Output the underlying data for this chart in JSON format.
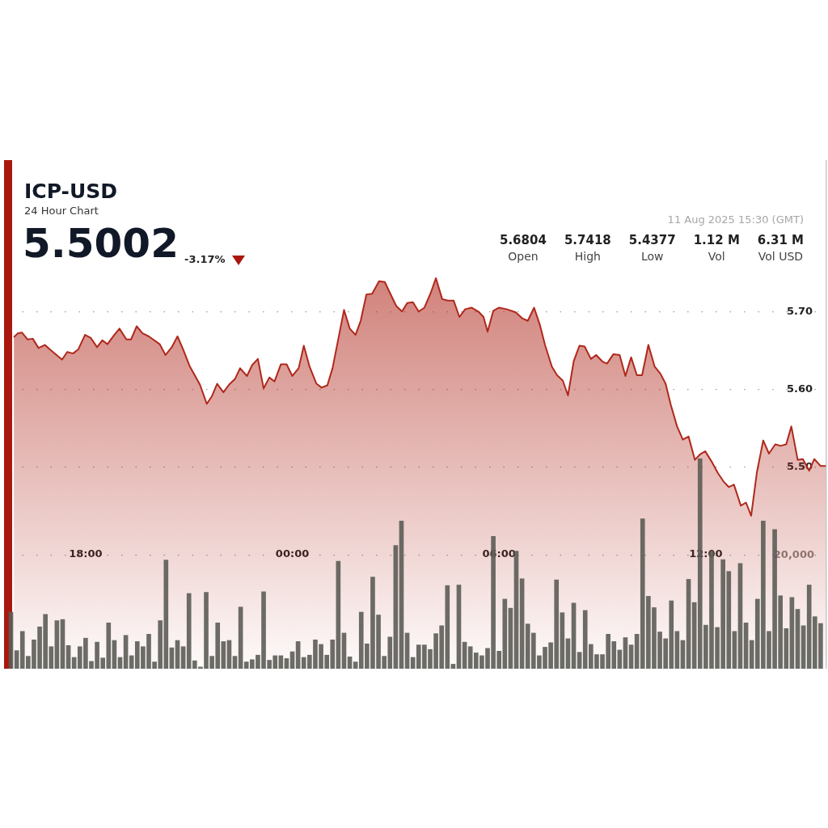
{
  "chart_data": {
    "type": "area",
    "title": "ICP-USD",
    "subtitle": "24 Hour Chart",
    "annotations": [
      "5.5002",
      "-3.17%",
      "11 Aug 2025 15:30 (GMT)",
      "5.6804",
      "Open",
      "5.7418",
      "High",
      "5.4377",
      "Low",
      "1.12 M",
      "Vol",
      "6.31 M",
      "Vol USD"
    ],
    "xlim": [
      "2025-08-10T15:45",
      "2025-08-11T15:30"
    ],
    "xticks": [
      {
        "value": "2025-08-10T18:00",
        "label": "18:00"
      },
      {
        "value": "2025-08-11T00:00",
        "label": "00:00"
      },
      {
        "value": "2025-08-11T06:00",
        "label": "06:00"
      },
      {
        "value": "2025-08-11T12:00",
        "label": "12:00"
      }
    ],
    "ylim": [
      5.24,
      5.895
    ],
    "yticks": [
      {
        "value": 5.5,
        "label": "5.50"
      },
      {
        "value": 5.6,
        "label": "5.60"
      },
      {
        "value": 5.7,
        "label": "5.70"
      }
    ],
    "y2lim": [
      0,
      89900
    ],
    "y2ticks": [
      {
        "value": 20000,
        "label": "20,000"
      }
    ],
    "grid": "y",
    "legend": false,
    "series": [
      {
        "color": "#b0281c",
        "x": [
          "2025-08-10T15:55",
          "2025-08-10T16:02",
          "2025-08-10T16:09",
          "2025-08-10T16:19",
          "2025-08-10T16:28",
          "2025-08-10T16:38",
          "2025-08-10T16:49",
          "2025-08-10T16:58",
          "2025-08-10T17:19",
          "2025-08-10T17:28",
          "2025-08-10T17:38",
          "2025-08-10T17:47",
          "2025-08-10T17:59",
          "2025-08-10T18:09",
          "2025-08-10T18:20",
          "2025-08-10T18:29",
          "2025-08-10T18:38",
          "2025-08-10T18:50",
          "2025-08-10T18:59",
          "2025-08-10T19:11",
          "2025-08-10T19:19",
          "2025-08-10T19:29",
          "2025-08-10T19:39",
          "2025-08-10T19:50",
          "2025-08-10T20:09",
          "2025-08-10T20:19",
          "2025-08-10T20:30",
          "2025-08-10T20:40",
          "2025-08-10T20:50",
          "2025-08-10T21:01",
          "2025-08-10T21:19",
          "2025-08-10T21:31",
          "2025-08-10T21:40",
          "2025-08-10T21:49",
          "2025-08-10T22:00",
          "2025-08-10T22:10",
          "2025-08-10T22:20",
          "2025-08-10T22:29",
          "2025-08-10T22:41",
          "2025-08-10T22:50",
          "2025-08-10T23:00",
          "2025-08-10T23:10",
          "2025-08-10T23:20",
          "2025-08-10T23:29",
          "2025-08-10T23:40",
          "2025-08-10T23:50",
          "2025-08-11T00:00",
          "2025-08-11T00:11",
          "2025-08-11T00:20",
          "2025-08-11T00:30",
          "2025-08-11T00:42",
          "2025-08-11T00:51",
          "2025-08-11T01:01",
          "2025-08-11T01:10",
          "2025-08-11T01:30",
          "2025-08-11T01:40",
          "2025-08-11T01:50",
          "2025-08-11T01:59",
          "2025-08-11T02:09",
          "2025-08-11T02:19",
          "2025-08-11T02:31",
          "2025-08-11T02:41",
          "2025-08-11T02:50",
          "2025-08-11T03:01",
          "2025-08-11T03:11",
          "2025-08-11T03:20",
          "2025-08-11T03:30",
          "2025-08-11T03:40",
          "2025-08-11T03:50",
          "2025-08-11T04:01",
          "2025-08-11T04:10",
          "2025-08-11T04:21",
          "2025-08-11T04:31",
          "2025-08-11T04:41",
          "2025-08-11T04:51",
          "2025-08-11T05:01",
          "2025-08-11T05:12",
          "2025-08-11T05:24",
          "2025-08-11T05:33",
          "2025-08-11T05:40",
          "2025-08-11T05:50",
          "2025-08-11T06:00",
          "2025-08-11T06:13",
          "2025-08-11T06:29",
          "2025-08-11T06:41",
          "2025-08-11T06:50",
          "2025-08-11T07:01",
          "2025-08-11T07:11",
          "2025-08-11T07:20",
          "2025-08-11T07:32",
          "2025-08-11T07:41",
          "2025-08-11T07:51",
          "2025-08-11T08:00",
          "2025-08-11T08:10",
          "2025-08-11T08:20",
          "2025-08-11T08:29",
          "2025-08-11T08:40",
          "2025-08-11T08:49",
          "2025-08-11T09:01",
          "2025-08-11T09:08",
          "2025-08-11T09:19",
          "2025-08-11T09:30",
          "2025-08-11T09:40",
          "2025-08-11T09:50",
          "2025-08-11T10:00",
          "2025-08-11T10:09",
          "2025-08-11T10:20",
          "2025-08-11T10:31",
          "2025-08-11T10:41",
          "2025-08-11T10:50",
          "2025-08-11T10:59",
          "2025-08-11T11:10",
          "2025-08-11T11:20",
          "2025-08-11T11:30",
          "2025-08-11T11:41",
          "2025-08-11T11:50",
          "2025-08-11T11:59",
          "2025-08-11T12:10",
          "2025-08-11T12:21",
          "2025-08-11T12:31",
          "2025-08-11T12:40",
          "2025-08-11T12:49",
          "2025-08-11T13:01",
          "2025-08-11T13:10",
          "2025-08-11T13:19",
          "2025-08-11T13:29",
          "2025-08-11T13:40",
          "2025-08-11T13:50",
          "2025-08-11T14:01",
          "2025-08-11T14:10",
          "2025-08-11T14:20",
          "2025-08-11T14:29",
          "2025-08-11T14:40",
          "2025-08-11T14:49",
          "2025-08-11T15:00",
          "2025-08-11T15:09",
          "2025-08-11T15:20",
          "2025-08-11T15:29"
        ],
        "values": [
          5.667,
          5.672,
          5.673,
          5.664,
          5.665,
          5.653,
          5.657,
          5.651,
          5.638,
          5.648,
          5.646,
          5.651,
          5.67,
          5.666,
          5.654,
          5.663,
          5.658,
          5.67,
          5.678,
          5.664,
          5.664,
          5.681,
          5.672,
          5.668,
          5.658,
          5.644,
          5.654,
          5.668,
          5.651,
          5.63,
          5.606,
          5.581,
          5.591,
          5.607,
          5.596,
          5.606,
          5.613,
          5.627,
          5.617,
          5.631,
          5.639,
          5.601,
          5.615,
          5.61,
          5.632,
          5.632,
          5.617,
          5.627,
          5.656,
          5.629,
          5.607,
          5.602,
          5.605,
          5.627,
          5.702,
          5.678,
          5.67,
          5.688,
          5.722,
          5.723,
          5.739,
          5.738,
          5.724,
          5.707,
          5.7,
          5.711,
          5.712,
          5.7,
          5.705,
          5.724,
          5.743,
          5.716,
          5.714,
          5.714,
          5.693,
          5.703,
          5.705,
          5.7,
          5.693,
          5.674,
          5.701,
          5.705,
          5.703,
          5.699,
          5.691,
          5.688,
          5.705,
          5.683,
          5.657,
          5.629,
          5.618,
          5.611,
          5.592,
          5.636,
          5.656,
          5.655,
          5.639,
          5.644,
          5.635,
          5.633,
          5.645,
          5.644,
          5.617,
          5.641,
          5.618,
          5.618,
          5.657,
          5.629,
          5.62,
          5.607,
          5.58,
          5.552,
          5.535,
          5.539,
          5.509,
          5.516,
          5.52,
          5.507,
          5.492,
          5.481,
          5.474,
          5.477,
          5.45,
          5.454,
          5.437,
          5.493,
          5.534,
          5.517,
          5.529,
          5.527,
          5.529,
          5.552,
          5.509,
          5.51,
          5.495,
          5.51,
          5.501,
          5.501
        ]
      },
      {
        "type": "bar",
        "axis": "y2",
        "color": "#5c5c57",
        "x": [
          "2025-08-10T15:50",
          "2025-08-10T16:00",
          "2025-08-10T16:10",
          "2025-08-10T16:20",
          "2025-08-10T16:30",
          "2025-08-10T16:40",
          "2025-08-10T16:50",
          "2025-08-10T17:00",
          "2025-08-10T17:10",
          "2025-08-10T17:20",
          "2025-08-10T17:30",
          "2025-08-10T17:40",
          "2025-08-10T17:50",
          "2025-08-10T18:00",
          "2025-08-10T18:10",
          "2025-08-10T18:20",
          "2025-08-10T18:30",
          "2025-08-10T18:40",
          "2025-08-10T18:50",
          "2025-08-10T19:00",
          "2025-08-10T19:10",
          "2025-08-10T19:20",
          "2025-08-10T19:30",
          "2025-08-10T19:40",
          "2025-08-10T19:50",
          "2025-08-10T20:00",
          "2025-08-10T20:10",
          "2025-08-10T20:20",
          "2025-08-10T20:30",
          "2025-08-10T20:40",
          "2025-08-10T20:50",
          "2025-08-10T21:00",
          "2025-08-10T21:10",
          "2025-08-10T21:20",
          "2025-08-10T21:30",
          "2025-08-10T21:40",
          "2025-08-10T21:50",
          "2025-08-10T22:00",
          "2025-08-10T22:10",
          "2025-08-10T22:20",
          "2025-08-10T22:30",
          "2025-08-10T22:40",
          "2025-08-10T22:50",
          "2025-08-10T23:00",
          "2025-08-10T23:10",
          "2025-08-10T23:20",
          "2025-08-10T23:30",
          "2025-08-10T23:40",
          "2025-08-10T23:50",
          "2025-08-11T00:00",
          "2025-08-11T00:10",
          "2025-08-11T00:20",
          "2025-08-11T00:30",
          "2025-08-11T00:40",
          "2025-08-11T00:50",
          "2025-08-11T01:00",
          "2025-08-11T01:10",
          "2025-08-11T01:20",
          "2025-08-11T01:30",
          "2025-08-11T01:40",
          "2025-08-11T01:50",
          "2025-08-11T02:00",
          "2025-08-11T02:10",
          "2025-08-11T02:20",
          "2025-08-11T02:30",
          "2025-08-11T02:40",
          "2025-08-11T02:50",
          "2025-08-11T03:00",
          "2025-08-11T03:10",
          "2025-08-11T03:20",
          "2025-08-11T03:30",
          "2025-08-11T03:40",
          "2025-08-11T03:50",
          "2025-08-11T04:00",
          "2025-08-11T04:10",
          "2025-08-11T04:20",
          "2025-08-11T04:30",
          "2025-08-11T04:40",
          "2025-08-11T04:50",
          "2025-08-11T05:00",
          "2025-08-11T05:10",
          "2025-08-11T05:20",
          "2025-08-11T05:30",
          "2025-08-11T05:40",
          "2025-08-11T05:50",
          "2025-08-11T06:00",
          "2025-08-11T06:10",
          "2025-08-11T06:20",
          "2025-08-11T06:30",
          "2025-08-11T06:40",
          "2025-08-11T06:50",
          "2025-08-11T07:00",
          "2025-08-11T07:10",
          "2025-08-11T07:20",
          "2025-08-11T07:30",
          "2025-08-11T07:40",
          "2025-08-11T07:50",
          "2025-08-11T08:00",
          "2025-08-11T08:10",
          "2025-08-11T08:20",
          "2025-08-11T08:30",
          "2025-08-11T08:40",
          "2025-08-11T08:50",
          "2025-08-11T09:00",
          "2025-08-11T09:10",
          "2025-08-11T09:20",
          "2025-08-11T09:30",
          "2025-08-11T09:40",
          "2025-08-11T09:50",
          "2025-08-11T10:00",
          "2025-08-11T10:10",
          "2025-08-11T10:20",
          "2025-08-11T10:30",
          "2025-08-11T10:40",
          "2025-08-11T10:50",
          "2025-08-11T11:00",
          "2025-08-11T11:10",
          "2025-08-11T11:20",
          "2025-08-11T11:30",
          "2025-08-11T11:40",
          "2025-08-11T11:50",
          "2025-08-11T12:00",
          "2025-08-11T12:10",
          "2025-08-11T12:20",
          "2025-08-11T12:30",
          "2025-08-11T12:40",
          "2025-08-11T12:50",
          "2025-08-11T13:00",
          "2025-08-11T13:10",
          "2025-08-11T13:20",
          "2025-08-11T13:30",
          "2025-08-11T13:40",
          "2025-08-11T13:50",
          "2025-08-11T14:00",
          "2025-08-11T14:10",
          "2025-08-11T14:20",
          "2025-08-11T14:30",
          "2025-08-11T14:40",
          "2025-08-11T14:50",
          "2025-08-11T15:00",
          "2025-08-11T15:10",
          "2025-08-11T15:20"
        ],
        "values": [
          10000,
          3200,
          6600,
          2200,
          5100,
          7400,
          9600,
          3900,
          8500,
          8700,
          4100,
          2000,
          3900,
          5400,
          1300,
          4700,
          1900,
          8100,
          5000,
          2000,
          5900,
          2300,
          4800,
          3900,
          6100,
          1200,
          8500,
          19200,
          3700,
          5000,
          3900,
          13300,
          1400,
          300,
          13500,
          2200,
          8100,
          4800,
          5000,
          2200,
          10900,
          1200,
          1600,
          2400,
          13600,
          1500,
          2300,
          2300,
          1800,
          3000,
          4800,
          2000,
          2400,
          5100,
          4300,
          2400,
          5100,
          19000,
          6300,
          2100,
          1200,
          10000,
          4400,
          16200,
          9500,
          2200,
          5600,
          21800,
          26100,
          6300,
          2000,
          4200,
          4200,
          3400,
          6200,
          7600,
          14700,
          800,
          14800,
          4700,
          3900,
          2800,
          2300,
          3600,
          23400,
          3100,
          12300,
          10700,
          20800,
          15900,
          7900,
          6300,
          2300,
          3800,
          4600,
          15700,
          9900,
          5300,
          11600,
          2900,
          10300,
          4300,
          2500,
          2500,
          6100,
          4800,
          3300,
          5500,
          4200,
          6100,
          26500,
          12800,
          10800,
          6500,
          5300,
          12000,
          6600,
          5000,
          15800,
          11700,
          37100,
          7700,
          20800,
          7300,
          19300,
          17200,
          6600,
          18600,
          8100,
          5000,
          12300,
          26100,
          6600,
          24600,
          12900,
          7100,
          12600,
          10500,
          7600,
          14800,
          9200,
          8000
        ]
      }
    ]
  }
}
